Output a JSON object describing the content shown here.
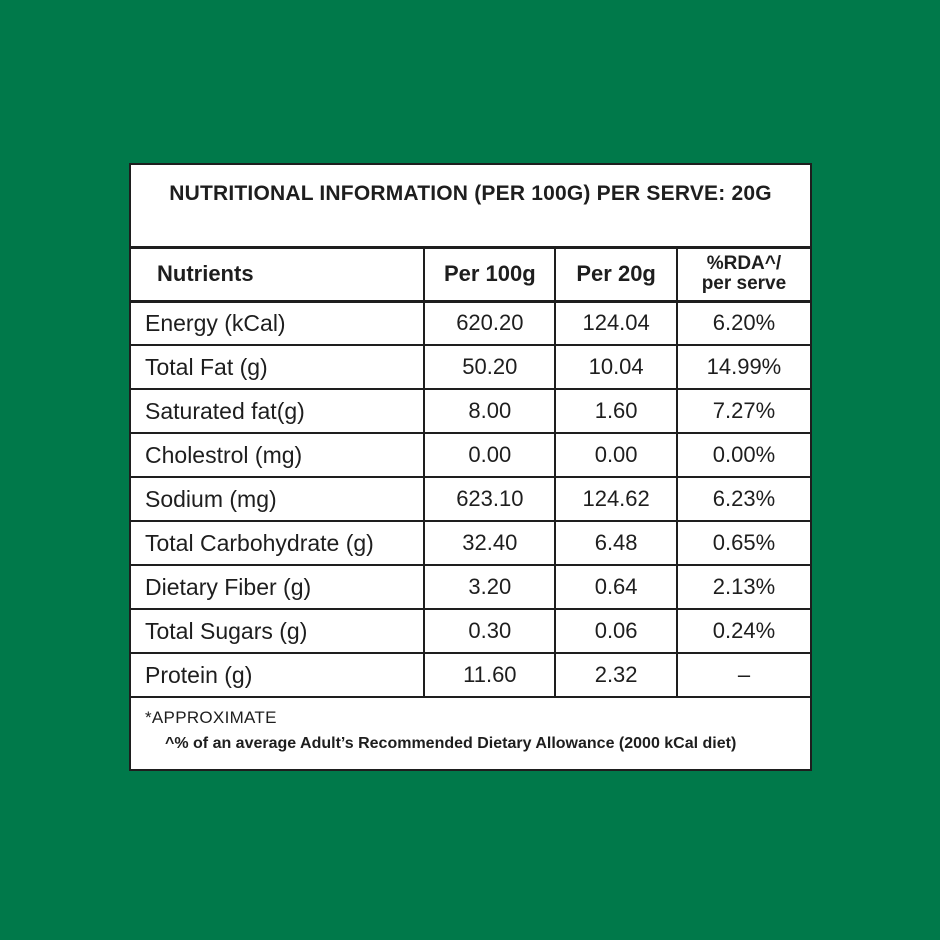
{
  "colors": {
    "background": "#00794A",
    "panel": "#ffffff",
    "border": "#1e1e1e",
    "text": "#1e1e1e"
  },
  "label": {
    "title": "NUTRITIONAL INFORMATION (PER 100G) PER SERVE: 20G",
    "header": {
      "nutrients": "Nutrients",
      "per_100g": "Per 100g",
      "per_20g": "Per 20g",
      "rda_line1": "%RDA^/",
      "rda_line2": "per serve"
    },
    "rows": [
      {
        "label": "Energy (kCal)",
        "per_100g": "620.20",
        "per_20g": "124.04",
        "rda": "6.20%"
      },
      {
        "label": "Total Fat (g)",
        "per_100g": "50.20",
        "per_20g": "10.04",
        "rda": "14.99%"
      },
      {
        "label": "Saturated fat(g)",
        "per_100g": "8.00",
        "per_20g": "1.60",
        "rda": "7.27%"
      },
      {
        "label": "Cholestrol (mg)",
        "per_100g": "0.00",
        "per_20g": "0.00",
        "rda": "0.00%"
      },
      {
        "label": "Sodium (mg)",
        "per_100g": "623.10",
        "per_20g": "124.62",
        "rda": "6.23%"
      },
      {
        "label": "Total Carbohydrate (g)",
        "per_100g": "32.40",
        "per_20g": "6.48",
        "rda": "0.65%"
      },
      {
        "label": "Dietary Fiber (g)",
        "per_100g": "3.20",
        "per_20g": "0.64",
        "rda": "2.13%"
      },
      {
        "label": "Total Sugars (g)",
        "per_100g": "0.30",
        "per_20g": "0.06",
        "rda": "0.24%"
      },
      {
        "label": "Protein (g)",
        "per_100g": "11.60",
        "per_20g": "2.32",
        "rda": "–"
      }
    ],
    "footnotes": {
      "approximate": "*APPROXIMATE",
      "rda_note": "^% of an average Adult’s Recommended Dietary Allowance (2000 kCal diet)"
    }
  }
}
